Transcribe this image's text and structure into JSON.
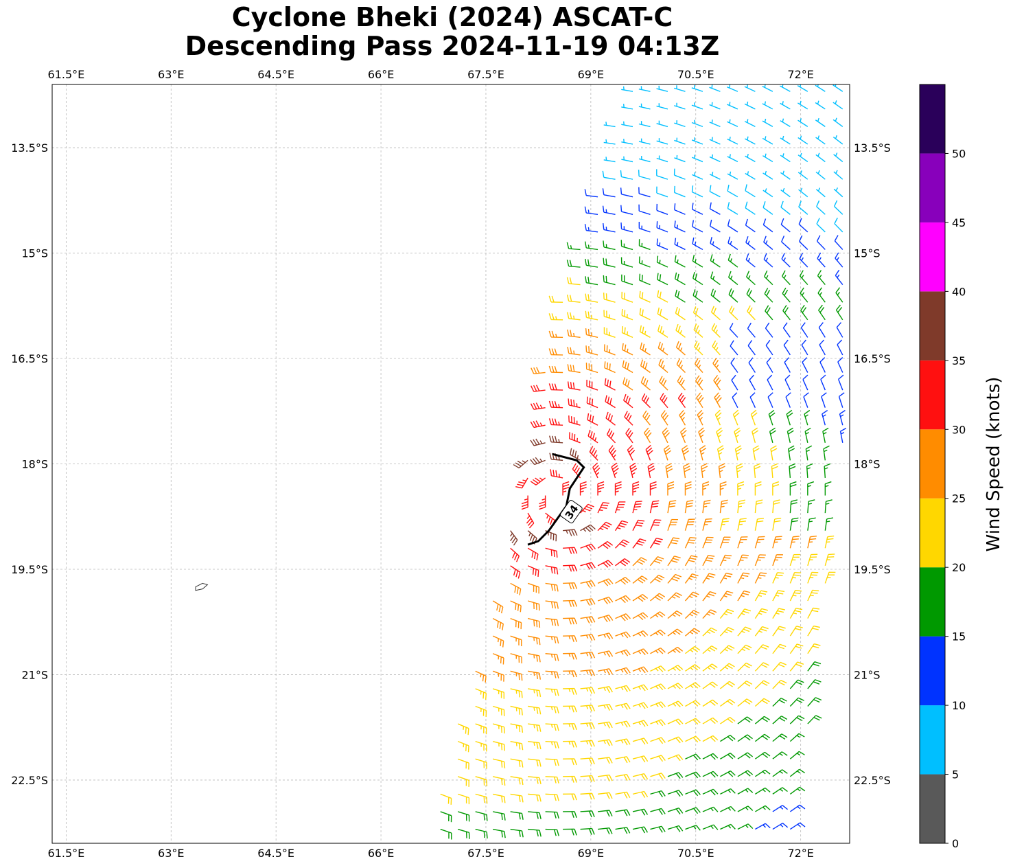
{
  "title_line1": "Cyclone Bheki (2024) ASCAT-C",
  "title_line2": "Descending Pass 2024-11-19 04:13Z",
  "chart_data": {
    "type": "wind-barb map",
    "title": "Cyclone Bheki (2024) ASCAT-C Descending Pass 2024-11-19 04:13Z",
    "lon_range": [
      61.3,
      72.7
    ],
    "lat_range": [
      -23.4,
      -12.6
    ],
    "x_ticks": [
      61.5,
      63,
      64.5,
      66,
      67.5,
      69,
      70.5,
      72
    ],
    "x_tick_labels": [
      "61.5°E",
      "63°E",
      "64.5°E",
      "66°E",
      "67.5°E",
      "69°E",
      "70.5°E",
      "72°E"
    ],
    "y_ticks": [
      -13.5,
      -15,
      -16.5,
      -18,
      -19.5,
      -21,
      -22.5
    ],
    "y_tick_labels": [
      "13.5°S",
      "15°S",
      "16.5°S",
      "18°S",
      "19.5°S",
      "21°S",
      "22.5°S"
    ],
    "grid": true,
    "colorbar": {
      "label": "Wind Speed (knots)",
      "bounds": [
        0,
        5,
        10,
        15,
        20,
        25,
        30,
        35,
        40,
        45,
        50,
        55
      ],
      "tick_values": [
        0,
        5,
        10,
        15,
        20,
        25,
        30,
        35,
        40,
        45,
        50
      ],
      "tick_labels": [
        "0",
        "5",
        "10",
        "15",
        "20",
        "25",
        "30",
        "35",
        "40",
        "45",
        "50"
      ],
      "colors": [
        "#595959",
        "#00bfff",
        "#0033ff",
        "#009900",
        "#ffd700",
        "#ff8c00",
        "#ff1010",
        "#7f3a2a",
        "#ff00ff",
        "#8800bb",
        "#2a005a"
      ]
    },
    "swath": {
      "corners_lon_lat": [
        [
          69.5,
          -12.6
        ],
        [
          72.7,
          -12.6
        ],
        [
          72.7,
          -17.0
        ],
        [
          71.9,
          -23.4
        ],
        [
          66.6,
          -23.4
        ],
        [
          67.7,
          -19.5
        ],
        [
          68.5,
          -16.0
        ]
      ]
    },
    "contour_34kt": {
      "label": "34",
      "points": [
        [
          68.45,
          -17.86
        ],
        [
          68.8,
          -17.95
        ],
        [
          68.9,
          -18.05
        ],
        [
          68.7,
          -18.35
        ],
        [
          68.65,
          -18.6
        ],
        [
          68.4,
          -18.95
        ],
        [
          68.25,
          -19.1
        ],
        [
          68.1,
          -19.15
        ]
      ]
    },
    "island_outline": [
      [
        63.35,
        -19.75
      ],
      [
        63.45,
        -19.7
      ],
      [
        63.52,
        -19.72
      ],
      [
        63.45,
        -19.78
      ],
      [
        63.35,
        -19.8
      ]
    ]
  }
}
